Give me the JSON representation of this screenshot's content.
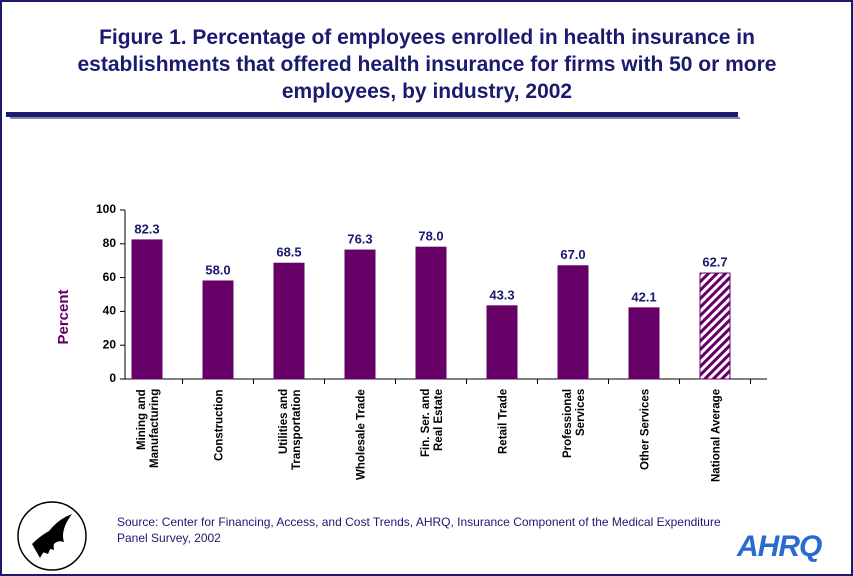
{
  "chart_data": {
    "type": "bar",
    "title": "Figure 1. Percentage of employees enrolled in health insurance in establishments that offered health insurance for firms with 50 or more employees, by industry, 2002",
    "y_label": "Percent",
    "categories": [
      "Mining and Manufacturing",
      "Construction",
      "Utilities and Transportation",
      "Wholesale Trade",
      "Fin. Ser. and Real Estate",
      "Retail Trade",
      "Professional Services",
      "Other Services",
      "National Average"
    ],
    "values": [
      82.3,
      58.0,
      68.5,
      76.3,
      78.0,
      43.3,
      67.0,
      42.1,
      62.7
    ],
    "value_labels": [
      "82.3",
      "58.0",
      "68.5",
      "76.3",
      "78.0",
      "43.3",
      "67.0",
      "42.1",
      "62.7"
    ],
    "hatched": [
      false,
      false,
      false,
      false,
      false,
      false,
      false,
      false,
      true
    ],
    "color": "#660066",
    "label_color": "#1a1a6e",
    "ylim": [
      0,
      100
    ],
    "yticks": [
      0,
      20,
      40,
      60,
      80,
      100
    ],
    "grid": false,
    "source": "Source: Center for Financing, Access, and Cost Trends, AHRQ, Insurance Component of the Medical Expenditure Panel Survey, 2002",
    "logo_text": "AHRQ"
  }
}
